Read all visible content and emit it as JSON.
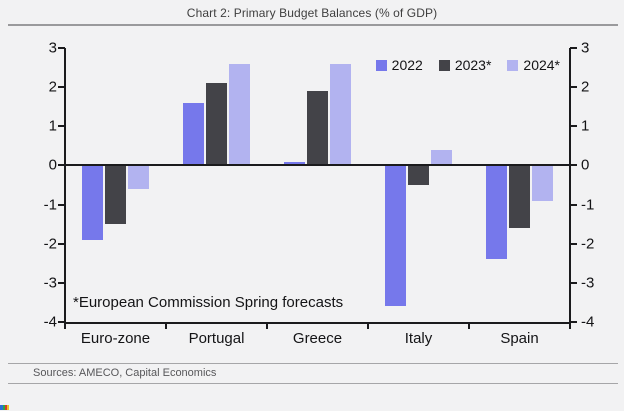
{
  "title": "Chart 2: Primary Budget Balances (% of GDP)",
  "annotation": "*European Commission Spring forecasts",
  "source": "Sources: AMECO, Capital Economics",
  "legend": [
    {
      "label": "2022",
      "color": "#7678EB"
    },
    {
      "label": "2023*",
      "color": "#434348"
    },
    {
      "label": "2024*",
      "color": "#B2B3F0"
    }
  ],
  "colors": {
    "background": "#F2F2F3",
    "axis": "#1B1B1D",
    "series_2022": "#7678EB",
    "series_2023": "#434348",
    "series_2024": "#B2B3F0"
  },
  "chart_data": {
    "type": "bar",
    "categories": [
      "Euro-zone",
      "Portugal",
      "Greece",
      "Italy",
      "Spain"
    ],
    "series": [
      {
        "name": "2022",
        "color": "#7678EB",
        "values": [
          -1.9,
          1.6,
          0.1,
          -3.6,
          -2.4
        ]
      },
      {
        "name": "2023*",
        "color": "#434348",
        "values": [
          -1.5,
          2.1,
          1.9,
          -0.5,
          -1.6
        ]
      },
      {
        "name": "2024*",
        "color": "#B2B3F0",
        "values": [
          -0.6,
          2.6,
          2.6,
          0.4,
          -0.9
        ]
      }
    ],
    "title": "Chart 2: Primary Budget Balances (% of GDP)",
    "xlabel": "",
    "ylabel": "",
    "ylim": [
      -4,
      3
    ],
    "yticks": [
      3,
      2,
      1,
      0,
      -1,
      -2,
      -3,
      -4
    ],
    "dual_y_axis": true,
    "grid": false,
    "legend_position": "top-right",
    "annotation": "*European Commission Spring forecasts"
  }
}
